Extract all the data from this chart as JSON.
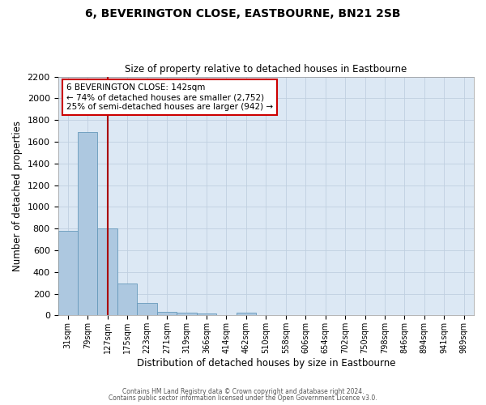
{
  "title": "6, BEVERINGTON CLOSE, EASTBOURNE, BN21 2SB",
  "subtitle": "Size of property relative to detached houses in Eastbourne",
  "xlabel": "Distribution of detached houses by size in Eastbourne",
  "ylabel": "Number of detached properties",
  "bin_labels": [
    "31sqm",
    "79sqm",
    "127sqm",
    "175sqm",
    "223sqm",
    "271sqm",
    "319sqm",
    "366sqm",
    "414sqm",
    "462sqm",
    "510sqm",
    "558sqm",
    "606sqm",
    "654sqm",
    "702sqm",
    "750sqm",
    "798sqm",
    "846sqm",
    "894sqm",
    "941sqm",
    "989sqm"
  ],
  "bin_values": [
    780,
    1690,
    800,
    295,
    115,
    35,
    28,
    20,
    0,
    22,
    0,
    0,
    0,
    0,
    0,
    0,
    0,
    0,
    0,
    0,
    0
  ],
  "bar_color": "#adc8e0",
  "bar_edge_color": "#6699bb",
  "grid_color": "#c0d0e0",
  "background_color": "#dce8f4",
  "vline_color": "#aa0000",
  "annotation_text": "6 BEVERINGTON CLOSE: 142sqm\n← 74% of detached houses are smaller (2,752)\n25% of semi-detached houses are larger (942) →",
  "annotation_box_color": "#ffffff",
  "annotation_box_edge": "#cc0000",
  "ylim": [
    0,
    2200
  ],
  "yticks": [
    0,
    200,
    400,
    600,
    800,
    1000,
    1200,
    1400,
    1600,
    1800,
    2000,
    2200
  ],
  "vline_index": 2,
  "footer_line1": "Contains HM Land Registry data © Crown copyright and database right 2024.",
  "footer_line2": "Contains public sector information licensed under the Open Government Licence v3.0."
}
